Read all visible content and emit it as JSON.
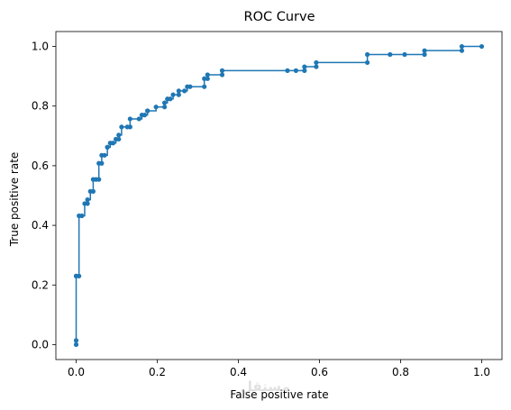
{
  "chart_data": {
    "type": "line",
    "title": "ROC Curve",
    "xlabel": "False positive rate",
    "ylabel": "True positive rate",
    "xlim": [
      -0.05,
      1.05
    ],
    "ylim": [
      -0.05,
      1.05
    ],
    "xticks": [
      0.0,
      0.2,
      0.4,
      0.6,
      0.8,
      1.0
    ],
    "yticks": [
      0.0,
      0.2,
      0.4,
      0.6,
      0.8,
      1.0
    ],
    "xtick_labels": [
      "0.0",
      "0.2",
      "0.4",
      "0.6",
      "0.8",
      "1.0"
    ],
    "ytick_labels": [
      "0.0",
      "0.2",
      "0.4",
      "0.6",
      "0.8",
      "1.0"
    ],
    "grid": false,
    "legend": "none",
    "series": [
      {
        "color": "#1f77b4",
        "marker": "circle",
        "drawstyle": "steps-post",
        "x": [
          0.0,
          0.0,
          0.0,
          0.0,
          0.007,
          0.007,
          0.014,
          0.021,
          0.028,
          0.028,
          0.035,
          0.042,
          0.042,
          0.049,
          0.056,
          0.056,
          0.063,
          0.063,
          0.07,
          0.077,
          0.077,
          0.084,
          0.091,
          0.098,
          0.105,
          0.105,
          0.112,
          0.126,
          0.133,
          0.133,
          0.155,
          0.162,
          0.169,
          0.176,
          0.176,
          0.197,
          0.218,
          0.218,
          0.225,
          0.232,
          0.239,
          0.253,
          0.253,
          0.267,
          0.274,
          0.281,
          0.316,
          0.316,
          0.324,
          0.324,
          0.36,
          0.36,
          0.521,
          0.542,
          0.563,
          0.563,
          0.592,
          0.592,
          0.718,
          0.718,
          0.774,
          0.81,
          0.859,
          0.859,
          0.951,
          0.951,
          1.0
        ],
        "y": [
          0.0,
          0.014,
          0.23,
          0.23,
          0.23,
          0.432,
          0.432,
          0.473,
          0.473,
          0.486,
          0.514,
          0.514,
          0.554,
          0.554,
          0.554,
          0.608,
          0.608,
          0.635,
          0.635,
          0.662,
          0.662,
          0.676,
          0.676,
          0.689,
          0.689,
          0.703,
          0.73,
          0.73,
          0.73,
          0.757,
          0.757,
          0.77,
          0.77,
          0.784,
          0.784,
          0.797,
          0.797,
          0.811,
          0.824,
          0.824,
          0.838,
          0.838,
          0.851,
          0.851,
          0.865,
          0.865,
          0.865,
          0.892,
          0.892,
          0.905,
          0.905,
          0.919,
          0.919,
          0.919,
          0.919,
          0.932,
          0.932,
          0.946,
          0.946,
          0.973,
          0.973,
          0.973,
          0.973,
          0.986,
          0.986,
          1.0,
          1.0
        ]
      }
    ]
  },
  "watermark": "مستقل"
}
